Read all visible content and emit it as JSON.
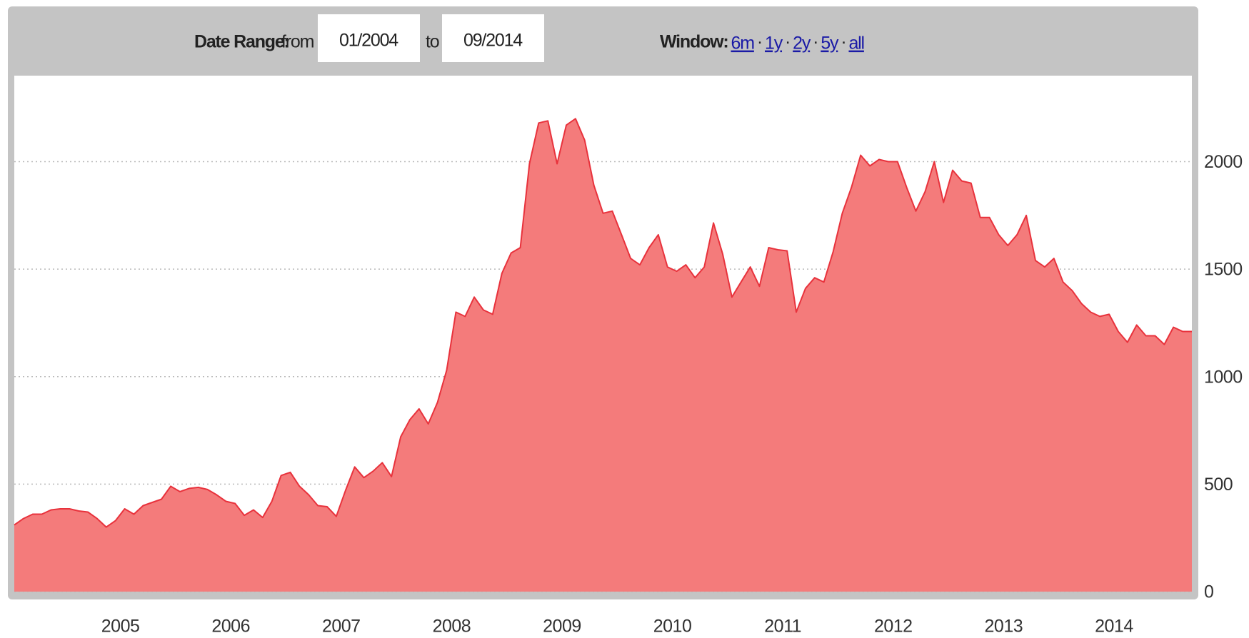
{
  "header": {
    "date_range_label": "Date Range:",
    "from_label": "from",
    "from_value": "01/2004",
    "to_label": "to",
    "to_value": "09/2014",
    "window_label": "Window:",
    "window_links": [
      "6m",
      "1y",
      "2y",
      "5y",
      "all"
    ],
    "separator": "·"
  },
  "chart_data": {
    "type": "area",
    "color": "#f47b7b",
    "line_color": "#e8323c",
    "grid": true,
    "x": [
      "2004-01",
      "2004-02",
      "2004-03",
      "2004-04",
      "2004-05",
      "2004-06",
      "2004-07",
      "2004-08",
      "2004-09",
      "2004-10",
      "2004-11",
      "2004-12",
      "2005-01",
      "2005-02",
      "2005-03",
      "2005-04",
      "2005-05",
      "2005-06",
      "2005-07",
      "2005-08",
      "2005-09",
      "2005-10",
      "2005-11",
      "2005-12",
      "2006-01",
      "2006-02",
      "2006-03",
      "2006-04",
      "2006-05",
      "2006-06",
      "2006-07",
      "2006-08",
      "2006-09",
      "2006-10",
      "2006-11",
      "2006-12",
      "2007-01",
      "2007-02",
      "2007-03",
      "2007-04",
      "2007-05",
      "2007-06",
      "2007-07",
      "2007-08",
      "2007-09",
      "2007-10",
      "2007-11",
      "2007-12",
      "2008-01",
      "2008-02",
      "2008-03",
      "2008-04",
      "2008-05",
      "2008-06",
      "2008-07",
      "2008-08",
      "2008-09",
      "2008-10",
      "2008-11",
      "2008-12",
      "2009-01",
      "2009-02",
      "2009-03",
      "2009-04",
      "2009-05",
      "2009-06",
      "2009-07",
      "2009-08",
      "2009-09",
      "2009-10",
      "2009-11",
      "2009-12",
      "2010-01",
      "2010-02",
      "2010-03",
      "2010-04",
      "2010-05",
      "2010-06",
      "2010-07",
      "2010-08",
      "2010-09",
      "2010-10",
      "2010-11",
      "2010-12",
      "2011-01",
      "2011-02",
      "2011-03",
      "2011-04",
      "2011-05",
      "2011-06",
      "2011-07",
      "2011-08",
      "2011-09",
      "2011-10",
      "2011-11",
      "2011-12",
      "2012-01",
      "2012-02",
      "2012-03",
      "2012-04",
      "2012-05",
      "2012-06",
      "2012-07",
      "2012-08",
      "2012-09",
      "2012-10",
      "2012-11",
      "2012-12",
      "2013-01",
      "2013-02",
      "2013-03",
      "2013-04",
      "2013-05",
      "2013-06",
      "2013-07",
      "2013-08",
      "2013-09",
      "2013-10",
      "2013-11",
      "2013-12",
      "2014-01",
      "2014-02",
      "2014-03",
      "2014-04",
      "2014-05",
      "2014-06",
      "2014-07",
      "2014-08",
      "2014-09"
    ],
    "values": [
      310,
      340,
      360,
      360,
      380,
      385,
      385,
      375,
      370,
      340,
      300,
      330,
      385,
      360,
      400,
      415,
      430,
      490,
      465,
      480,
      485,
      475,
      450,
      420,
      410,
      355,
      380,
      345,
      420,
      540,
      555,
      490,
      450,
      400,
      395,
      350,
      470,
      580,
      530,
      560,
      600,
      535,
      720,
      800,
      850,
      780,
      880,
      1030,
      1300,
      1280,
      1370,
      1310,
      1290,
      1480,
      1575,
      1600,
      1990,
      2180,
      2190,
      1990,
      2170,
      2200,
      2100,
      1890,
      1760,
      1770,
      1660,
      1550,
      1520,
      1600,
      1660,
      1510,
      1490,
      1520,
      1460,
      1510,
      1715,
      1570,
      1370,
      1440,
      1510,
      1420,
      1600,
      1590,
      1585,
      1300,
      1410,
      1460,
      1440,
      1580,
      1760,
      1880,
      2030,
      1980,
      2010,
      2000,
      2000,
      1880,
      1770,
      1860,
      2000,
      1810,
      1960,
      1910,
      1900,
      1740,
      1740,
      1660,
      1610,
      1660,
      1750,
      1540,
      1510,
      1550,
      1440,
      1400,
      1340,
      1300,
      1280,
      1290,
      1210,
      1160,
      1240,
      1190,
      1190,
      1150,
      1230,
      1210,
      1210
    ],
    "xlim": [
      "2004-01",
      "2014-09"
    ],
    "xticks": [
      2005,
      2006,
      2007,
      2008,
      2009,
      2010,
      2011,
      2012,
      2013,
      2014
    ],
    "ylim": [
      0,
      2400
    ],
    "yticks": [
      0,
      500,
      1000,
      1500,
      2000
    ]
  }
}
